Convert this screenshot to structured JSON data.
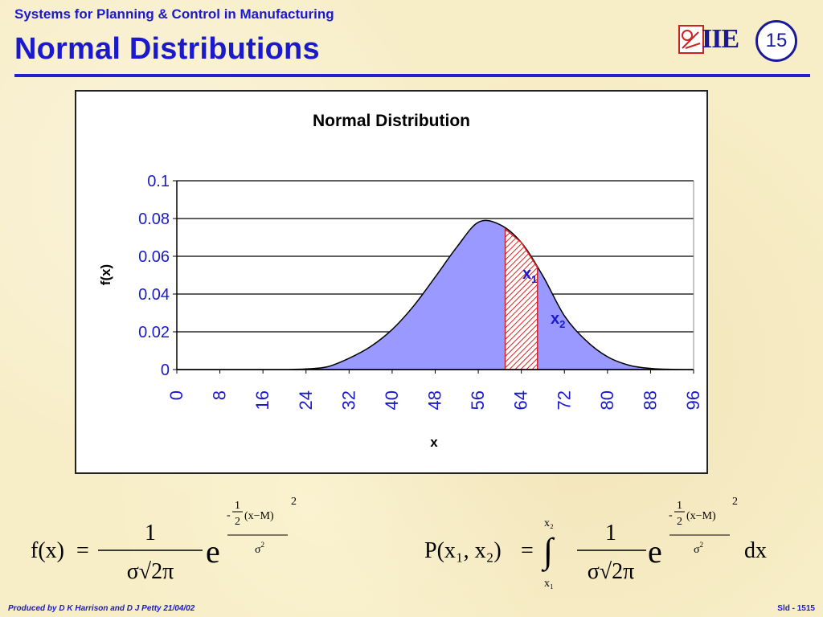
{
  "header": {
    "subtitle": "Systems for Planning & Control in Manufacturing",
    "title": "Normal Distributions",
    "logo_icon": "iie-logo-icon",
    "logo_text": "IIE",
    "slide_number": "15"
  },
  "chart_data": {
    "type": "area",
    "title": "Normal Distribution",
    "xlabel": "x",
    "ylabel": "f(x)",
    "x_ticks": [
      "0",
      "8",
      "16",
      "24",
      "32",
      "40",
      "48",
      "56",
      "64",
      "72",
      "80",
      "88",
      "96"
    ],
    "y_ticks": [
      "0",
      "0.02",
      "0.04",
      "0.06",
      "0.08",
      "0.1"
    ],
    "xlim": [
      0,
      96
    ],
    "ylim": [
      0,
      0.1
    ],
    "grid": "horizontal",
    "fill_color": "#9999ff",
    "highlight_color": "#dd2222",
    "x": [
      0,
      4,
      8,
      12,
      16,
      20,
      24,
      28,
      32,
      36,
      40,
      44,
      48,
      52,
      56,
      60,
      64,
      68,
      72,
      76,
      80,
      84,
      88,
      92,
      96
    ],
    "y": [
      0,
      0,
      0,
      0,
      0,
      0,
      0.0003,
      0.0015,
      0.006,
      0.0122,
      0.0212,
      0.0337,
      0.049,
      0.0648,
      0.078,
      0.0768,
      0.0673,
      0.0496,
      0.0285,
      0.0154,
      0.0068,
      0.0023,
      0.0006,
      0.0001,
      0
    ],
    "highlight": {
      "x1": 61,
      "x2": 67
    },
    "annotations": [
      {
        "base": "x",
        "sub": "1"
      },
      {
        "base": "x",
        "sub": "2"
      }
    ]
  },
  "formulas": {
    "f": {
      "lhs": "f(x)",
      "eq": "=",
      "numerator": "1",
      "denominator": "σ√2π",
      "base": "e",
      "exp_sign": "-",
      "exp_half_num": "1",
      "exp_half_den": "2",
      "exp_term": "(x−M)",
      "exp_sup": "2",
      "exp_den": "σ",
      "exp_den_sup": "2"
    },
    "p": {
      "lhs": "P(x₁, x₂)",
      "eq": "=",
      "integral": "∫",
      "upper": "x₂",
      "lower": "x₁",
      "numerator": "1",
      "denominator": "σ√2π",
      "base": "e",
      "exp_sign": "-",
      "exp_half_num": "1",
      "exp_half_den": "2",
      "exp_term": "(x−M)",
      "exp_sup": "2",
      "exp_den": "σ",
      "exp_den_sup": "2",
      "dx": "dx"
    }
  },
  "footer": {
    "left": "Produced by D K Harrison and D J Petty 21/04/02",
    "right": "Sld - 1515"
  }
}
